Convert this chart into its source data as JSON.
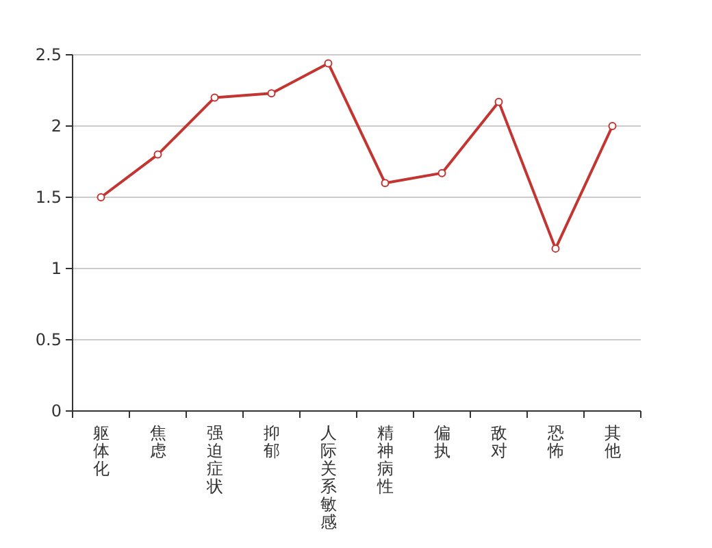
{
  "chart_data": {
    "type": "line",
    "categories": [
      "躯体化",
      "焦虑",
      "强迫症状",
      "抑郁",
      "人际关系敏感",
      "精神病性",
      "偏执",
      "敌对",
      "恐怖",
      "其他"
    ],
    "series": [
      {
        "color": "#c23531",
        "values": [
          1.5,
          1.8,
          2.2,
          2.23,
          2.44,
          1.6,
          1.67,
          2.17,
          1.14,
          2.0
        ]
      }
    ],
    "ylim": [
      0,
      2.5
    ],
    "yticks": [
      0,
      0.5,
      1,
      1.5,
      2,
      2.5
    ],
    "grid": "y",
    "marker": "circle"
  }
}
